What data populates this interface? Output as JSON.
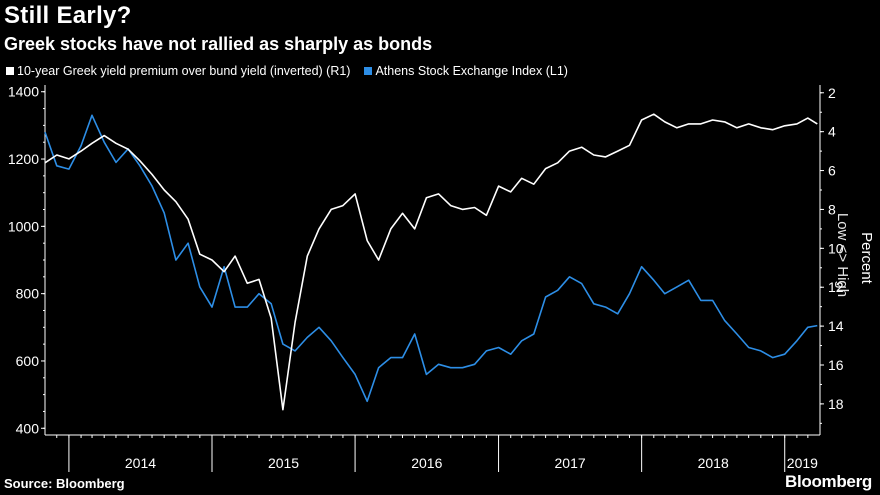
{
  "header": {
    "title": "Still Early?",
    "subtitle": "Greek stocks have not rallied as sharply as bonds"
  },
  "footer": {
    "source": "Source: Bloomberg",
    "brand": "Bloomberg"
  },
  "chart_data": {
    "type": "line",
    "legend_position": "top-left",
    "grid": false,
    "x_range": [
      "2013-11",
      "2019-04"
    ],
    "x_ticks": [
      "2014",
      "2015",
      "2016",
      "2017",
      "2018",
      "2019"
    ],
    "left_axis": {
      "ticks": [
        "400",
        "600",
        "800",
        "1000",
        "1200",
        "1400"
      ],
      "range": [
        380,
        1420
      ]
    },
    "right_axis": {
      "label": "Percent",
      "annotation": "Low <> High",
      "inverted": true,
      "ticks": [
        "2",
        "4",
        "6",
        "8",
        "10",
        "12",
        "14",
        "16",
        "18"
      ],
      "range": [
        1.6,
        19.6
      ]
    },
    "series": [
      {
        "name": "10-year Greek yield premium over bund yield (inverted) (R1)",
        "color": "#ffffff",
        "axis": "right",
        "points": [
          [
            "2013-11-01",
            5.6
          ],
          [
            "2013-12-01",
            5.2
          ],
          [
            "2014-01-01",
            5.4
          ],
          [
            "2014-02-01",
            5.0
          ],
          [
            "2014-03-01",
            4.6
          ],
          [
            "2014-04-01",
            4.2
          ],
          [
            "2014-05-01",
            4.6
          ],
          [
            "2014-06-01",
            4.9
          ],
          [
            "2014-07-01",
            5.5
          ],
          [
            "2014-08-01",
            6.2
          ],
          [
            "2014-09-01",
            7.0
          ],
          [
            "2014-10-01",
            7.6
          ],
          [
            "2014-11-01",
            8.5
          ],
          [
            "2014-12-01",
            10.3
          ],
          [
            "2015-01-01",
            10.6
          ],
          [
            "2015-02-01",
            11.2
          ],
          [
            "2015-03-01",
            10.4
          ],
          [
            "2015-04-01",
            11.8
          ],
          [
            "2015-05-01",
            11.6
          ],
          [
            "2015-06-01",
            13.6
          ],
          [
            "2015-07-01",
            18.3
          ],
          [
            "2015-08-01",
            13.8
          ],
          [
            "2015-09-01",
            10.4
          ],
          [
            "2015-10-01",
            9.0
          ],
          [
            "2015-11-01",
            8.0
          ],
          [
            "2015-12-01",
            7.8
          ],
          [
            "2016-01-01",
            7.2
          ],
          [
            "2016-02-01",
            9.6
          ],
          [
            "2016-03-01",
            10.6
          ],
          [
            "2016-04-01",
            9.0
          ],
          [
            "2016-05-01",
            8.2
          ],
          [
            "2016-06-01",
            9.0
          ],
          [
            "2016-07-01",
            7.4
          ],
          [
            "2016-08-01",
            7.2
          ],
          [
            "2016-09-01",
            7.8
          ],
          [
            "2016-10-01",
            8.0
          ],
          [
            "2016-11-01",
            7.9
          ],
          [
            "2016-12-01",
            8.3
          ],
          [
            "2017-01-01",
            6.8
          ],
          [
            "2017-02-01",
            7.1
          ],
          [
            "2017-03-01",
            6.4
          ],
          [
            "2017-04-01",
            6.7
          ],
          [
            "2017-05-01",
            5.9
          ],
          [
            "2017-06-01",
            5.6
          ],
          [
            "2017-07-01",
            5.0
          ],
          [
            "2017-08-01",
            4.8
          ],
          [
            "2017-09-01",
            5.2
          ],
          [
            "2017-10-01",
            5.3
          ],
          [
            "2017-11-01",
            5.0
          ],
          [
            "2017-12-01",
            4.7
          ],
          [
            "2018-01-01",
            3.4
          ],
          [
            "2018-02-01",
            3.1
          ],
          [
            "2018-03-01",
            3.5
          ],
          [
            "2018-04-01",
            3.8
          ],
          [
            "2018-05-01",
            3.6
          ],
          [
            "2018-06-01",
            3.6
          ],
          [
            "2018-07-01",
            3.4
          ],
          [
            "2018-08-01",
            3.5
          ],
          [
            "2018-09-01",
            3.8
          ],
          [
            "2018-10-01",
            3.6
          ],
          [
            "2018-11-01",
            3.8
          ],
          [
            "2018-12-01",
            3.9
          ],
          [
            "2019-01-01",
            3.7
          ],
          [
            "2019-02-01",
            3.6
          ],
          [
            "2019-03-01",
            3.3
          ],
          [
            "2019-03-25",
            3.6
          ]
        ]
      },
      {
        "name": "Athens Stock Exchange Index (L1)",
        "color": "#2d8ee6",
        "axis": "left",
        "points": [
          [
            "2013-11-01",
            1280
          ],
          [
            "2013-12-01",
            1180
          ],
          [
            "2014-01-01",
            1170
          ],
          [
            "2014-02-01",
            1240
          ],
          [
            "2014-03-01",
            1330
          ],
          [
            "2014-04-01",
            1250
          ],
          [
            "2014-05-01",
            1190
          ],
          [
            "2014-06-01",
            1230
          ],
          [
            "2014-07-01",
            1180
          ],
          [
            "2014-08-01",
            1120
          ],
          [
            "2014-09-01",
            1040
          ],
          [
            "2014-10-01",
            900
          ],
          [
            "2014-11-01",
            950
          ],
          [
            "2014-12-01",
            820
          ],
          [
            "2015-01-01",
            760
          ],
          [
            "2015-02-01",
            880
          ],
          [
            "2015-03-01",
            760
          ],
          [
            "2015-04-01",
            760
          ],
          [
            "2015-05-01",
            800
          ],
          [
            "2015-06-01",
            770
          ],
          [
            "2015-07-01",
            650
          ],
          [
            "2015-08-01",
            630
          ],
          [
            "2015-09-01",
            670
          ],
          [
            "2015-10-01",
            700
          ],
          [
            "2015-11-01",
            660
          ],
          [
            "2015-12-01",
            610
          ],
          [
            "2016-01-01",
            560
          ],
          [
            "2016-02-01",
            480
          ],
          [
            "2016-03-01",
            580
          ],
          [
            "2016-04-01",
            610
          ],
          [
            "2016-05-01",
            610
          ],
          [
            "2016-06-01",
            680
          ],
          [
            "2016-07-01",
            560
          ],
          [
            "2016-08-01",
            590
          ],
          [
            "2016-09-01",
            580
          ],
          [
            "2016-10-01",
            580
          ],
          [
            "2016-11-01",
            590
          ],
          [
            "2016-12-01",
            630
          ],
          [
            "2017-01-01",
            640
          ],
          [
            "2017-02-01",
            620
          ],
          [
            "2017-03-01",
            660
          ],
          [
            "2017-04-01",
            680
          ],
          [
            "2017-05-01",
            790
          ],
          [
            "2017-06-01",
            810
          ],
          [
            "2017-07-01",
            850
          ],
          [
            "2017-08-01",
            830
          ],
          [
            "2017-09-01",
            770
          ],
          [
            "2017-10-01",
            760
          ],
          [
            "2017-11-01",
            740
          ],
          [
            "2017-12-01",
            800
          ],
          [
            "2018-01-01",
            880
          ],
          [
            "2018-02-01",
            840
          ],
          [
            "2018-03-01",
            800
          ],
          [
            "2018-04-01",
            820
          ],
          [
            "2018-05-01",
            840
          ],
          [
            "2018-06-01",
            780
          ],
          [
            "2018-07-01",
            780
          ],
          [
            "2018-08-01",
            720
          ],
          [
            "2018-09-01",
            680
          ],
          [
            "2018-10-01",
            640
          ],
          [
            "2018-11-01",
            630
          ],
          [
            "2018-12-01",
            610
          ],
          [
            "2019-01-01",
            620
          ],
          [
            "2019-02-01",
            660
          ],
          [
            "2019-03-01",
            700
          ],
          [
            "2019-03-25",
            705
          ]
        ]
      }
    ]
  }
}
